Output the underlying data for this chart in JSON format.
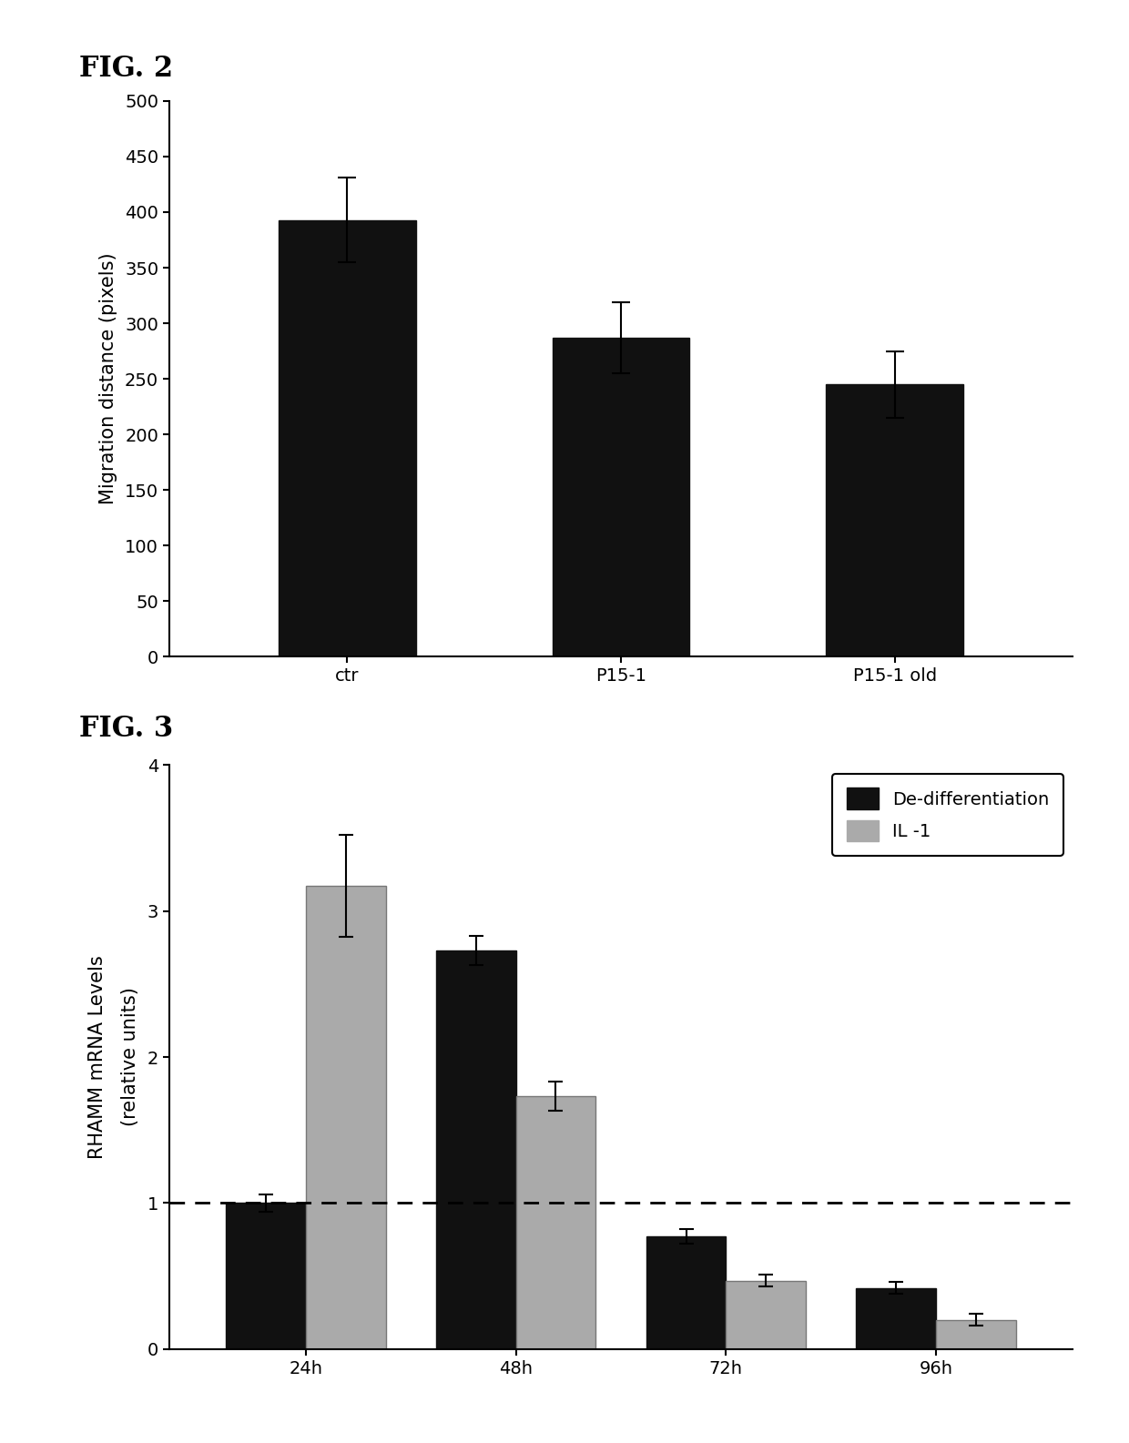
{
  "fig2": {
    "title": "FIG. 2",
    "categories": [
      "ctr",
      "P15-1",
      "P15-1 old"
    ],
    "values": [
      393,
      287,
      245
    ],
    "errors": [
      38,
      32,
      30
    ],
    "bar_color": "#111111",
    "ylabel": "Migration distance (pixels)",
    "ylim": [
      0,
      500
    ],
    "yticks": [
      0,
      50,
      100,
      150,
      200,
      250,
      300,
      350,
      400,
      450,
      500
    ]
  },
  "fig3": {
    "title": "FIG. 3",
    "time_points": [
      "24h",
      "48h",
      "72h",
      "96h"
    ],
    "dediff_values": [
      1.0,
      2.73,
      0.77,
      0.42
    ],
    "dediff_errors": [
      0.06,
      0.1,
      0.05,
      0.04
    ],
    "il1_values": [
      3.17,
      1.73,
      0.47,
      0.2
    ],
    "il1_errors": [
      0.35,
      0.1,
      0.04,
      0.04
    ],
    "bar_color_black": "#111111",
    "bar_color_gray": "#aaaaaa",
    "ylabel": "RHAMM mRNA Levels\n(relative units)",
    "ylim": [
      0,
      4
    ],
    "yticks": [
      0,
      1,
      2,
      3,
      4
    ],
    "dashed_line_y": 1.0,
    "legend_labels": [
      "De-differentiation",
      "IL -1"
    ]
  },
  "background_color": "#ffffff",
  "label_fontsize": 15,
  "tick_fontsize": 14,
  "fig_label_fontsize": 22
}
